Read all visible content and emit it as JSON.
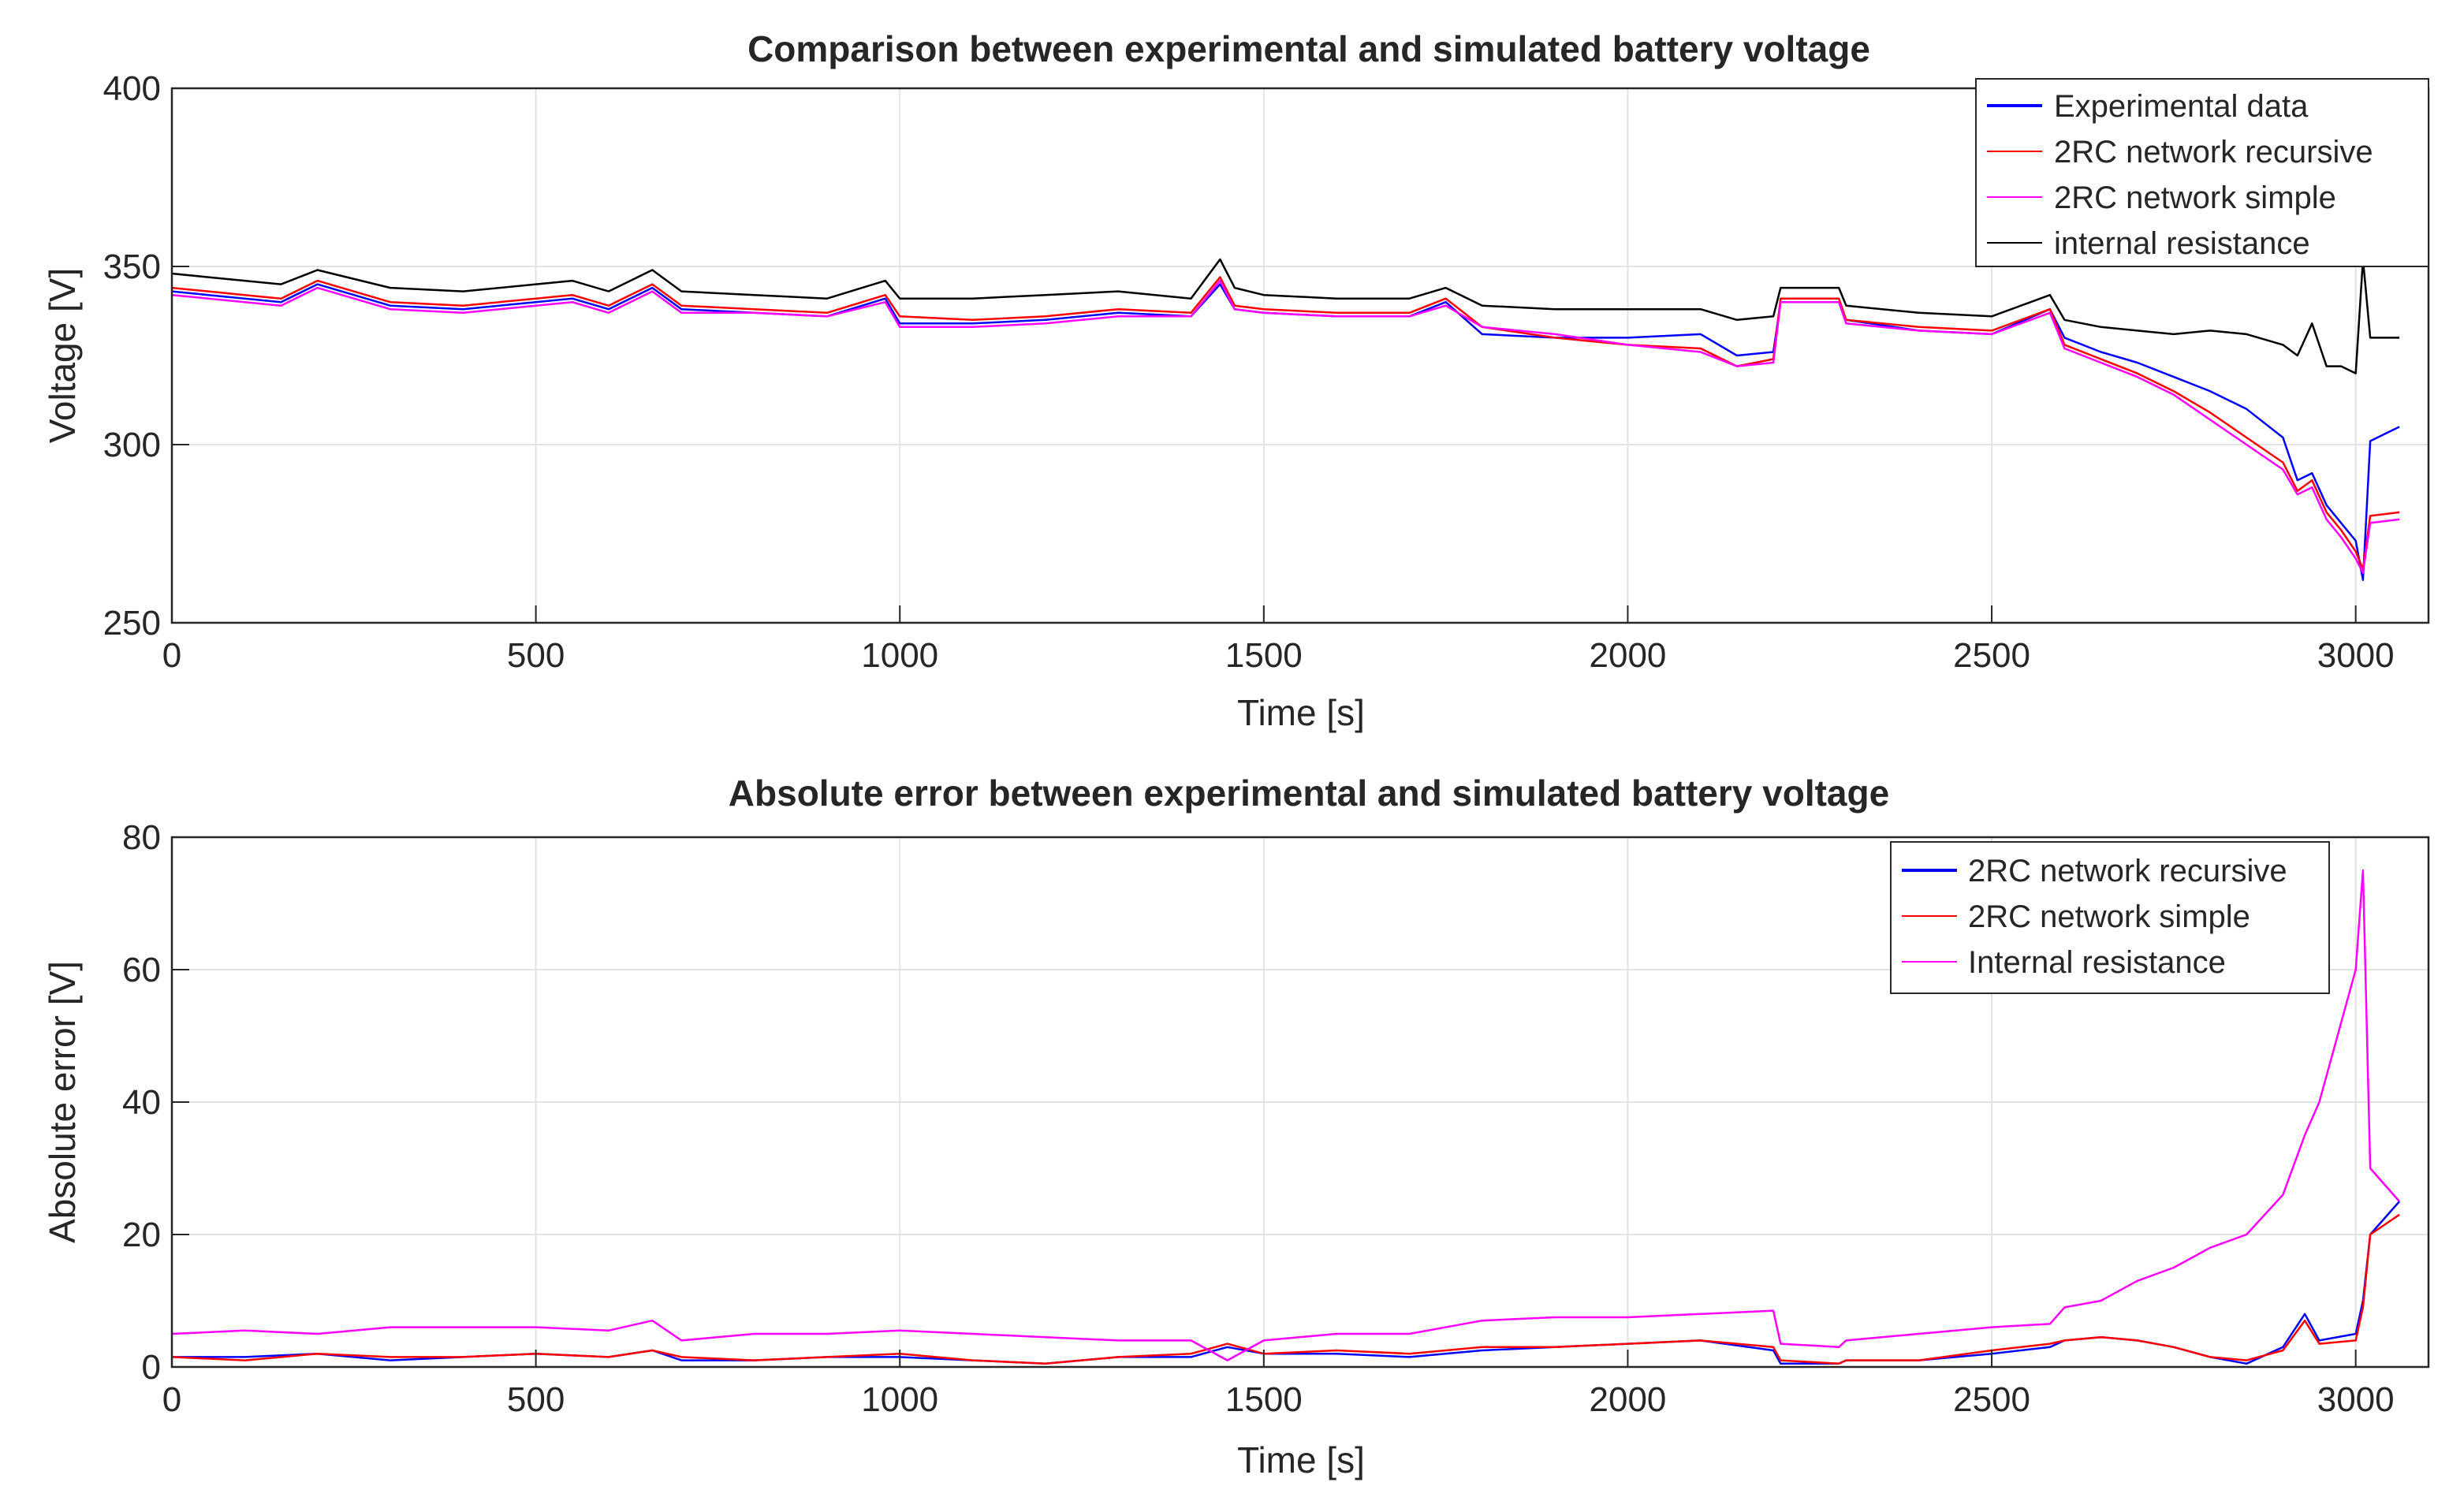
{
  "chart_data": [
    {
      "type": "line",
      "title": "Comparison between experimental and simulated battery voltage",
      "xlabel": "Time [s]",
      "ylabel": "Voltage [V]",
      "xlim": [
        0,
        3100
      ],
      "ylim": [
        250,
        400
      ],
      "xticks": [
        0,
        500,
        1000,
        1500,
        2000,
        2500,
        3000
      ],
      "yticks": [
        250,
        300,
        350,
        400
      ],
      "grid": true,
      "legend_position": "top-right",
      "series": [
        {
          "name": "Experimental data",
          "color": "#0000ff",
          "x": [
            0,
            50,
            100,
            150,
            200,
            300,
            400,
            500,
            550,
            600,
            660,
            700,
            800,
            900,
            980,
            1000,
            1100,
            1200,
            1300,
            1400,
            1440,
            1460,
            1500,
            1600,
            1700,
            1750,
            1800,
            1900,
            2000,
            2100,
            2150,
            2200,
            2210,
            2290,
            2300,
            2400,
            2500,
            2580,
            2600,
            2650,
            2700,
            2750,
            2800,
            2850,
            2900,
            2920,
            2940,
            2960,
            2980,
            3000,
            3010,
            3020,
            3060
          ],
          "y": [
            343,
            342,
            341,
            340,
            345,
            339,
            338,
            340,
            341,
            338,
            344,
            338,
            337,
            336,
            341,
            334,
            334,
            335,
            337,
            336,
            345,
            338,
            337,
            336,
            336,
            340,
            331,
            330,
            330,
            331,
            325,
            326,
            340,
            340,
            335,
            332,
            331,
            338,
            330,
            326,
            323,
            319,
            315,
            310,
            302,
            290,
            292,
            283,
            278,
            273,
            262,
            301,
            305
          ]
        },
        {
          "name": "2RC network recursive",
          "color": "#ff0000",
          "x": [
            0,
            50,
            100,
            150,
            200,
            300,
            400,
            500,
            550,
            600,
            660,
            700,
            800,
            900,
            980,
            1000,
            1100,
            1200,
            1300,
            1400,
            1440,
            1460,
            1500,
            1600,
            1700,
            1750,
            1800,
            1900,
            2000,
            2100,
            2150,
            2200,
            2210,
            2290,
            2300,
            2400,
            2500,
            2580,
            2600,
            2650,
            2700,
            2750,
            2800,
            2850,
            2900,
            2920,
            2940,
            2960,
            2980,
            3000,
            3010,
            3020,
            3060
          ],
          "y": [
            344,
            343,
            342,
            341,
            346,
            340,
            339,
            341,
            342,
            339,
            345,
            339,
            338,
            337,
            342,
            336,
            335,
            336,
            338,
            337,
            347,
            339,
            338,
            337,
            337,
            341,
            333,
            330,
            328,
            327,
            322,
            324,
            341,
            341,
            335,
            333,
            332,
            338,
            328,
            324,
            320,
            315,
            309,
            302,
            295,
            287,
            290,
            281,
            276,
            270,
            265,
            280,
            281
          ]
        },
        {
          "name": "2RC network simple",
          "color": "#ff00ff",
          "x": [
            0,
            50,
            100,
            150,
            200,
            300,
            400,
            500,
            550,
            600,
            660,
            700,
            800,
            900,
            980,
            1000,
            1100,
            1200,
            1300,
            1400,
            1440,
            1460,
            1500,
            1600,
            1700,
            1750,
            1800,
            1900,
            2000,
            2100,
            2150,
            2200,
            2210,
            2290,
            2300,
            2400,
            2500,
            2580,
            2600,
            2650,
            2700,
            2750,
            2800,
            2850,
            2900,
            2920,
            2940,
            2960,
            2980,
            3000,
            3010,
            3020,
            3060
          ],
          "y": [
            342,
            341,
            340,
            339,
            344,
            338,
            337,
            339,
            340,
            337,
            343,
            337,
            337,
            336,
            340,
            333,
            333,
            334,
            336,
            336,
            346,
            338,
            337,
            336,
            336,
            339,
            333,
            331,
            328,
            326,
            322,
            323,
            340,
            340,
            334,
            332,
            331,
            337,
            327,
            323,
            319,
            314,
            307,
            300,
            293,
            286,
            288,
            279,
            274,
            268,
            264,
            278,
            279
          ]
        },
        {
          "name": "internal resistance",
          "color": "#000000",
          "x": [
            0,
            50,
            100,
            150,
            200,
            300,
            400,
            500,
            550,
            600,
            660,
            700,
            800,
            900,
            980,
            1000,
            1100,
            1200,
            1300,
            1400,
            1440,
            1460,
            1500,
            1600,
            1700,
            1750,
            1800,
            1900,
            2000,
            2100,
            2150,
            2200,
            2210,
            2290,
            2300,
            2400,
            2500,
            2580,
            2600,
            2650,
            2700,
            2750,
            2800,
            2850,
            2900,
            2920,
            2940,
            2960,
            2980,
            3000,
            3010,
            3020,
            3060
          ],
          "y": [
            348,
            347,
            346,
            345,
            349,
            344,
            343,
            345,
            346,
            343,
            349,
            343,
            342,
            341,
            346,
            341,
            341,
            342,
            343,
            341,
            352,
            344,
            342,
            341,
            341,
            344,
            339,
            338,
            338,
            338,
            335,
            336,
            344,
            344,
            339,
            337,
            336,
            342,
            335,
            333,
            332,
            331,
            332,
            331,
            328,
            325,
            334,
            322,
            322,
            320,
            352,
            330,
            330
          ]
        }
      ]
    },
    {
      "type": "line",
      "title": "Absolute error between experimental and simulated battery voltage",
      "xlabel": "Time [s]",
      "ylabel": "Absolute error [V]",
      "xlim": [
        0,
        3100
      ],
      "ylim": [
        0,
        80
      ],
      "xticks": [
        0,
        500,
        1000,
        1500,
        2000,
        2500,
        3000
      ],
      "yticks": [
        0,
        20,
        40,
        60,
        80
      ],
      "grid": true,
      "legend_position": "top-right",
      "series": [
        {
          "name": "2RC network recursive",
          "color": "#0000ff",
          "x": [
            0,
            100,
            200,
            300,
            400,
            500,
            600,
            660,
            700,
            800,
            900,
            1000,
            1100,
            1200,
            1300,
            1400,
            1450,
            1500,
            1600,
            1700,
            1800,
            1900,
            2000,
            2100,
            2200,
            2210,
            2290,
            2300,
            2400,
            2500,
            2580,
            2600,
            2650,
            2700,
            2750,
            2800,
            2850,
            2900,
            2930,
            2950,
            3000,
            3010,
            3020,
            3060
          ],
          "y": [
            1.5,
            1.5,
            2,
            1,
            1.5,
            2,
            1.5,
            2.5,
            1,
            1,
            1.5,
            1.5,
            1,
            0.5,
            1.5,
            1.5,
            3,
            2,
            2,
            1.5,
            2.5,
            3,
            3.5,
            4,
            2.5,
            0.5,
            0.5,
            1,
            1,
            2,
            3,
            4,
            4.5,
            4,
            3,
            1.5,
            0.5,
            3,
            8,
            4,
            5,
            10,
            20,
            25
          ]
        },
        {
          "name": "2RC network simple",
          "color": "#ff0000",
          "x": [
            0,
            100,
            200,
            300,
            400,
            500,
            600,
            660,
            700,
            800,
            900,
            1000,
            1100,
            1200,
            1300,
            1400,
            1450,
            1500,
            1600,
            1700,
            1800,
            1900,
            2000,
            2100,
            2200,
            2210,
            2290,
            2300,
            2400,
            2500,
            2580,
            2600,
            2650,
            2700,
            2750,
            2800,
            2850,
            2900,
            2930,
            2950,
            3000,
            3010,
            3020,
            3060
          ],
          "y": [
            1.5,
            1,
            2,
            1.5,
            1.5,
            2,
            1.5,
            2.5,
            1.5,
            1,
            1.5,
            2,
            1,
            0.5,
            1.5,
            2,
            3.5,
            2,
            2.5,
            2,
            3,
            3,
            3.5,
            4,
            3,
            1,
            0.5,
            1,
            1,
            2.5,
            3.5,
            4,
            4.5,
            4,
            3,
            1.5,
            1,
            2.5,
            7,
            3.5,
            4,
            9,
            20,
            23
          ]
        },
        {
          "name": "Internal resistance",
          "color": "#ff00ff",
          "x": [
            0,
            100,
            200,
            300,
            400,
            500,
            600,
            660,
            700,
            800,
            900,
            1000,
            1100,
            1200,
            1300,
            1400,
            1450,
            1500,
            1600,
            1700,
            1800,
            1900,
            2000,
            2100,
            2200,
            2210,
            2290,
            2300,
            2400,
            2500,
            2580,
            2600,
            2650,
            2700,
            2750,
            2800,
            2850,
            2900,
            2930,
            2950,
            3000,
            3010,
            3020,
            3060
          ],
          "y": [
            5,
            5.5,
            5,
            6,
            6,
            6,
            5.5,
            7,
            4,
            5,
            5,
            5.5,
            5,
            4.5,
            4,
            4,
            1,
            4,
            5,
            5,
            7,
            7.5,
            7.5,
            8,
            8.5,
            3.5,
            3,
            4,
            5,
            6,
            6.5,
            9,
            10,
            13,
            15,
            18,
            20,
            26,
            35,
            40,
            60,
            75,
            30,
            25
          ]
        }
      ]
    }
  ]
}
